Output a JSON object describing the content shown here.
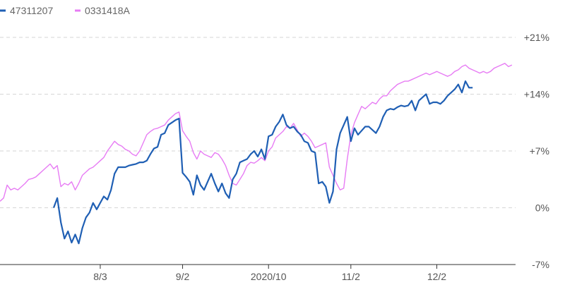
{
  "chart_data": {
    "type": "line",
    "title": "",
    "xlabel": "",
    "ylabel": "",
    "ylim": [
      -7,
      21
    ],
    "yticks": [
      {
        "value": 21,
        "label": "+21%"
      },
      {
        "value": 14,
        "label": "+14%"
      },
      {
        "value": 7,
        "label": "+7%"
      },
      {
        "value": 0,
        "label": "0%"
      },
      {
        "value": -7,
        "label": "-7%"
      }
    ],
    "xticks": [
      {
        "value": 28,
        "label": "8/3"
      },
      {
        "value": 51,
        "label": "9/2"
      },
      {
        "value": 75,
        "label": "2020/10"
      },
      {
        "value": 98,
        "label": "11/2"
      },
      {
        "value": 122,
        "label": "12/2"
      }
    ],
    "xlim": [
      0,
      144
    ],
    "grid": true,
    "legend": "top-left",
    "series": [
      {
        "name": "47311207",
        "color": "#1f5fb4",
        "start_index": 15,
        "values": [
          0.0,
          1.2,
          -1.8,
          -3.8,
          -2.9,
          -4.3,
          -3.3,
          -4.4,
          -2.5,
          -1.2,
          -0.6,
          0.6,
          -0.2,
          0.6,
          1.4,
          1.0,
          2.2,
          4.2,
          5.0,
          5.0,
          5.0,
          5.2,
          5.3,
          5.4,
          5.6,
          5.6,
          5.8,
          6.6,
          7.3,
          7.5,
          9.0,
          9.2,
          10.2,
          10.5,
          10.8,
          11.0,
          4.3,
          3.8,
          3.2,
          1.6,
          4.0,
          2.8,
          2.2,
          3.2,
          4.2,
          3.0,
          2.0,
          3.0,
          1.8,
          1.2,
          3.5,
          4.2,
          5.6,
          5.8,
          6.0,
          6.6,
          7.0,
          6.3,
          7.2,
          6.0,
          8.8,
          9.0,
          10.0,
          10.6,
          11.5,
          10.2,
          9.8,
          10.0,
          9.4,
          9.0,
          8.2,
          8.0,
          7.0,
          6.8,
          3.0,
          3.2,
          2.6,
          0.6,
          2.0,
          7.2,
          9.2,
          10.2,
          11.2,
          8.2,
          9.8,
          9.0,
          9.5,
          10.0,
          10.0,
          9.6,
          9.2,
          10.0,
          11.2,
          12.0,
          12.2,
          12.1,
          12.4,
          12.6,
          12.5,
          12.6,
          13.2,
          12.0,
          13.2,
          13.6,
          14.0,
          12.8,
          13.0,
          13.0,
          12.8,
          13.2,
          13.8,
          14.2,
          14.6,
          15.2,
          14.2,
          15.6,
          14.8,
          14.8
        ]
      },
      {
        "name": "0331418A",
        "color": "#e77cf4",
        "start_index": 0,
        "values": [
          0.8,
          1.2,
          2.8,
          2.2,
          2.4,
          2.2,
          2.6,
          3.0,
          3.5,
          3.6,
          3.8,
          4.2,
          4.6,
          5.0,
          5.4,
          4.8,
          5.2,
          2.6,
          3.0,
          2.8,
          3.2,
          2.2,
          3.0,
          4.0,
          4.4,
          4.8,
          5.0,
          5.4,
          5.8,
          6.2,
          7.0,
          7.6,
          8.2,
          7.8,
          7.6,
          7.2,
          7.0,
          6.6,
          6.4,
          7.0,
          8.0,
          9.0,
          9.4,
          9.7,
          9.8,
          10.0,
          10.2,
          10.8,
          11.2,
          11.6,
          11.8,
          9.5,
          8.8,
          8.2,
          6.8,
          6.0,
          7.0,
          6.6,
          6.4,
          6.2,
          6.8,
          6.6,
          6.0,
          5.2,
          4.0,
          3.0,
          2.8,
          3.5,
          4.2,
          5.2,
          5.6,
          5.5,
          5.8,
          6.2,
          5.8,
          7.0,
          7.5,
          8.6,
          9.0,
          9.4,
          10.0,
          9.8,
          10.4,
          9.6,
          8.8,
          9.2,
          8.8,
          8.2,
          7.4,
          7.6,
          7.8,
          8.0,
          5.0,
          4.0,
          3.0,
          2.2,
          2.4,
          6.0,
          9.0,
          10.5,
          11.5,
          12.5,
          12.2,
          12.6,
          13.0,
          12.8,
          13.4,
          13.8,
          13.8,
          14.4,
          14.8,
          15.2,
          15.4,
          15.6,
          15.6,
          15.8,
          16.0,
          16.2,
          16.4,
          16.6,
          16.4,
          16.6,
          16.8,
          16.6,
          16.4,
          16.2,
          16.4,
          16.8,
          17.0,
          17.4,
          17.6,
          17.2,
          17.0,
          16.8,
          16.6,
          16.8,
          16.6,
          16.8,
          17.2,
          17.4,
          17.6,
          17.8,
          17.4,
          17.6
        ]
      }
    ]
  }
}
